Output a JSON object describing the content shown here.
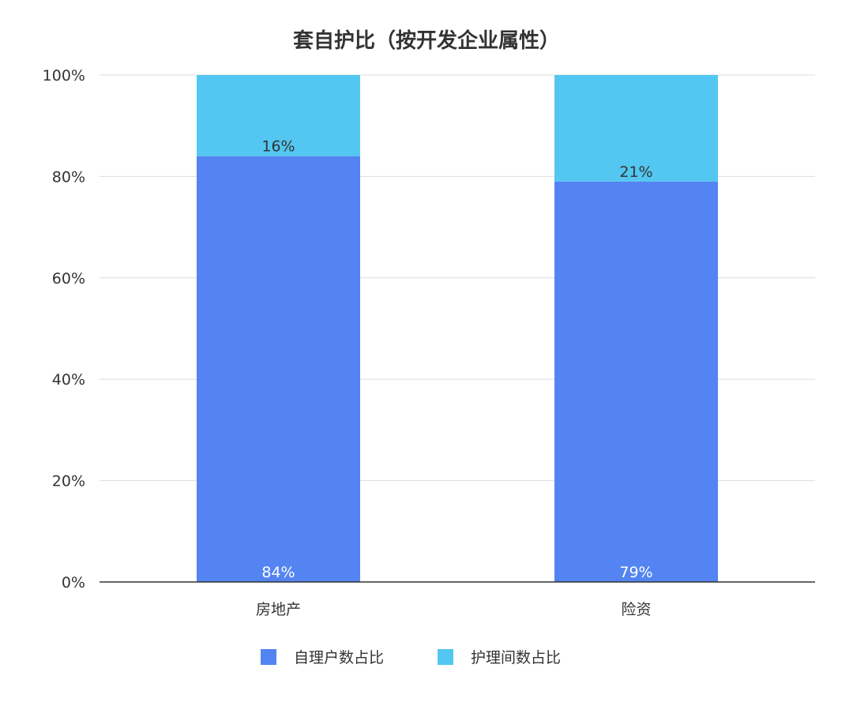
{
  "chart_data": {
    "type": "bar",
    "stacked": true,
    "title": "套自护比（按开发企业属性）",
    "categories": [
      "房地产",
      "险资"
    ],
    "series": [
      {
        "name": "自理户数占比",
        "values": [
          84,
          79
        ],
        "labels": [
          "84%",
          "79%"
        ],
        "color": "#5384F1",
        "label_color": "#ffffff"
      },
      {
        "name": "护理间数占比",
        "values": [
          16,
          21
        ],
        "labels": [
          "16%",
          "21%"
        ],
        "color": "#53C7F1",
        "label_color": "#333333"
      }
    ],
    "ylim": [
      0,
      100
    ],
    "yticks": [
      "0%",
      "20%",
      "40%",
      "60%",
      "80%",
      "100%"
    ],
    "ytick_values": [
      0,
      20,
      40,
      60,
      80,
      100
    ],
    "grid": true,
    "legend_position": "bottom-center",
    "colors": {
      "gridline": "#dddddd",
      "axis": "#333333",
      "text": "#333333"
    }
  }
}
